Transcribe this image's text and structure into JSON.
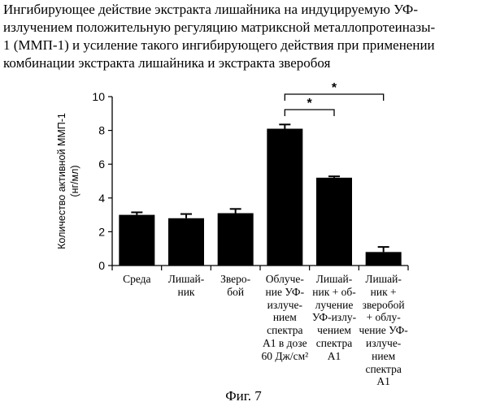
{
  "heading": {
    "lines": [
      "Ингибирующее действие экстракта лишайника на индуцируемую УФ-",
      "излучением положительную регуляцию матриксной металлопротеиназы-",
      "1 (ММП-1) и усиление такого ингибирующего действия при применении",
      "комбинации экстракта лишайника и экстракта зверобоя"
    ]
  },
  "caption": "Фиг. 7",
  "chart_data": {
    "type": "bar",
    "ylabel_lines": [
      "Количество активной ММП-1",
      "(нг/мл)"
    ],
    "ylim": [
      0,
      10
    ],
    "yticks": [
      "0",
      "2",
      "4",
      "6",
      "8",
      "10"
    ],
    "categories": [
      [
        "Среда"
      ],
      [
        "Лишай-",
        "ник"
      ],
      [
        "Зверо-",
        "бой"
      ],
      [
        "Облуче-",
        "ние УФ-",
        "излуче-",
        "нием",
        "спектра",
        "А1 в дозе",
        "60 Дж/см²"
      ],
      [
        "Лишай-",
        "ник + об-",
        "лучение",
        "УФ-излу-",
        "чением",
        "спектра",
        "А1"
      ],
      [
        "Лишай-",
        "ник +",
        "зверобой",
        "+ облу-",
        "чение УФ-",
        "излуче-",
        "нием",
        "спектра",
        "А1"
      ]
    ],
    "values": [
      3.0,
      2.8,
      3.1,
      8.1,
      5.2,
      0.8
    ],
    "errors": [
      0.15,
      0.25,
      0.25,
      0.25,
      0.08,
      0.3
    ],
    "significance": [
      {
        "from": 3,
        "to": 4,
        "label": "*"
      },
      {
        "from": 3,
        "to": 5,
        "label": "*"
      }
    ],
    "bar_color": "#000000",
    "grid": false
  }
}
